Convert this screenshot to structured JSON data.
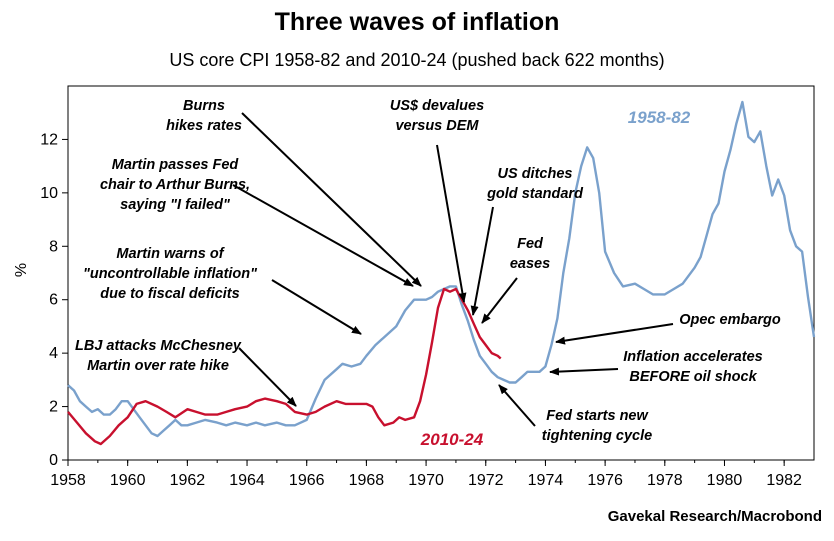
{
  "chart_data": {
    "type": "line",
    "title": "Three waves of inflation",
    "subtitle": "US core CPI 1958-82 and 2010-24 (pushed back 622 months)",
    "ylabel": "%",
    "xlabel": "",
    "source": "Gavekal Research/Macrobond",
    "xlim": [
      1958,
      1983
    ],
    "ylim": [
      0,
      14
    ],
    "x_ticks": [
      1958,
      1960,
      1962,
      1964,
      1966,
      1968,
      1970,
      1972,
      1974,
      1976,
      1978,
      1980,
      1982
    ],
    "y_ticks": [
      0,
      2,
      4,
      6,
      8,
      10,
      12
    ],
    "grid": false,
    "series": [
      {
        "name": "1958-82",
        "color": "#7aa1cc",
        "x": [
          1958.0,
          1958.2,
          1958.4,
          1958.6,
          1958.8,
          1959.0,
          1959.2,
          1959.4,
          1959.6,
          1959.8,
          1960.0,
          1960.2,
          1960.4,
          1960.6,
          1960.8,
          1961.0,
          1961.2,
          1961.4,
          1961.6,
          1961.8,
          1962.0,
          1962.3,
          1962.6,
          1963.0,
          1963.3,
          1963.6,
          1964.0,
          1964.3,
          1964.6,
          1965.0,
          1965.3,
          1965.6,
          1966.0,
          1966.3,
          1966.6,
          1967.0,
          1967.2,
          1967.5,
          1967.8,
          1968.0,
          1968.3,
          1968.6,
          1969.0,
          1969.3,
          1969.6,
          1970.0,
          1970.2,
          1970.4,
          1970.6,
          1970.8,
          1971.0,
          1971.2,
          1971.4,
          1971.6,
          1971.8,
          1972.0,
          1972.2,
          1972.4,
          1972.6,
          1972.8,
          1973.0,
          1973.2,
          1973.4,
          1973.6,
          1973.8,
          1974.0,
          1974.2,
          1974.4,
          1974.6,
          1974.8,
          1975.0,
          1975.2,
          1975.4,
          1975.6,
          1975.8,
          1976.0,
          1976.3,
          1976.6,
          1977.0,
          1977.3,
          1977.6,
          1978.0,
          1978.3,
          1978.6,
          1979.0,
          1979.2,
          1979.4,
          1979.6,
          1979.8,
          1980.0,
          1980.2,
          1980.4,
          1980.6,
          1980.8,
          1981.0,
          1981.2,
          1981.4,
          1981.6,
          1981.8,
          1982.0,
          1982.2,
          1982.4,
          1982.6,
          1982.8,
          1983.0
        ],
        "values": [
          2.8,
          2.6,
          2.2,
          2.0,
          1.8,
          1.9,
          1.7,
          1.7,
          1.9,
          2.2,
          2.2,
          1.9,
          1.6,
          1.3,
          1.0,
          0.9,
          1.1,
          1.3,
          1.5,
          1.3,
          1.3,
          1.4,
          1.5,
          1.4,
          1.3,
          1.4,
          1.3,
          1.4,
          1.3,
          1.4,
          1.3,
          1.3,
          1.5,
          2.3,
          3.0,
          3.4,
          3.6,
          3.5,
          3.6,
          3.9,
          4.3,
          4.6,
          5.0,
          5.6,
          6.0,
          6.0,
          6.1,
          6.3,
          6.4,
          6.5,
          6.5,
          5.8,
          5.2,
          4.5,
          3.9,
          3.6,
          3.3,
          3.1,
          3.0,
          2.9,
          2.9,
          3.1,
          3.3,
          3.3,
          3.3,
          3.5,
          4.3,
          5.3,
          7.0,
          8.3,
          10.0,
          11.0,
          11.7,
          11.3,
          10.0,
          7.8,
          7.0,
          6.5,
          6.6,
          6.4,
          6.2,
          6.2,
          6.4,
          6.6,
          7.2,
          7.6,
          8.4,
          9.2,
          9.6,
          10.8,
          11.6,
          12.6,
          13.4,
          12.1,
          11.9,
          12.3,
          11.0,
          9.9,
          10.5,
          9.9,
          8.6,
          8.0,
          7.8,
          6.1,
          4.6
        ]
      },
      {
        "name": "2010-24",
        "color": "#c8102e",
        "x": [
          1958.0,
          1958.3,
          1958.6,
          1958.9,
          1959.1,
          1959.4,
          1959.7,
          1960.0,
          1960.3,
          1960.6,
          1961.0,
          1961.3,
          1961.6,
          1962.0,
          1962.3,
          1962.6,
          1963.0,
          1963.3,
          1963.6,
          1964.0,
          1964.3,
          1964.6,
          1965.0,
          1965.3,
          1965.6,
          1966.0,
          1966.3,
          1966.6,
          1967.0,
          1967.3,
          1967.6,
          1968.0,
          1968.2,
          1968.4,
          1968.6,
          1968.9,
          1969.1,
          1969.3,
          1969.6,
          1969.8,
          1970.0,
          1970.2,
          1970.4,
          1970.6,
          1970.8,
          1971.0,
          1971.2,
          1971.4,
          1971.6,
          1971.8,
          1972.0,
          1972.2,
          1972.4,
          1972.5
        ],
        "values": [
          1.8,
          1.4,
          1.0,
          0.7,
          0.6,
          0.9,
          1.3,
          1.6,
          2.1,
          2.2,
          2.0,
          1.8,
          1.6,
          1.9,
          1.8,
          1.7,
          1.7,
          1.8,
          1.9,
          2.0,
          2.2,
          2.3,
          2.2,
          2.1,
          1.8,
          1.7,
          1.8,
          2.0,
          2.2,
          2.1,
          2.1,
          2.1,
          2.0,
          1.6,
          1.3,
          1.4,
          1.6,
          1.5,
          1.6,
          2.2,
          3.2,
          4.4,
          5.7,
          6.4,
          6.3,
          6.4,
          6.0,
          5.6,
          5.1,
          4.6,
          4.3,
          4.0,
          3.9,
          3.8
        ]
      }
    ],
    "series_labels": [
      {
        "text": "1958-82",
        "color": "#7aa1cc"
      },
      {
        "text": "2010-24",
        "color": "#c8102e"
      }
    ],
    "annotations": [
      {
        "lines": [
          "Burns",
          "hikes rates"
        ]
      },
      {
        "lines": [
          "US$ devalues",
          "versus DEM"
        ]
      },
      {
        "lines": [
          "Martin passes Fed",
          "chair to Arthur Burns,",
          "saying \"I failed\""
        ]
      },
      {
        "lines": [
          "US ditches",
          "gold standard"
        ]
      },
      {
        "lines": [
          "Fed",
          "eases"
        ]
      },
      {
        "lines": [
          "Martin warns of",
          "\"uncontrollable inflation\"",
          "due to fiscal deficits"
        ]
      },
      {
        "lines": [
          "Opec embargo"
        ]
      },
      {
        "lines": [
          "LBJ attacks McChesney",
          "Martin over rate hike"
        ]
      },
      {
        "lines": [
          "Inflation accelerates",
          "BEFORE oil shock"
        ]
      },
      {
        "lines": [
          "Fed starts new",
          "tightening cycle"
        ]
      }
    ]
  }
}
